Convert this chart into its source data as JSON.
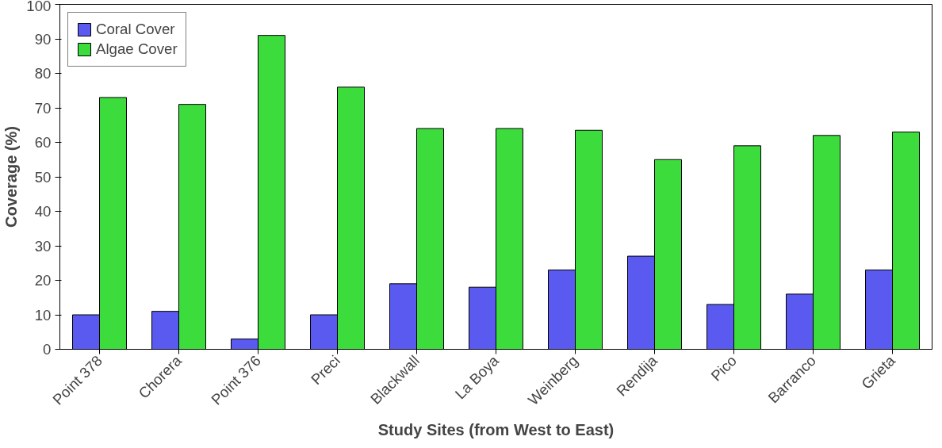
{
  "chart_data": {
    "type": "bar",
    "xlabel": "Study Sites (from West to East)",
    "ylabel": "Coverage (%)",
    "categories": [
      "Point 378",
      "Chorera",
      "Point 376",
      "Preci",
      "Blackwall",
      "La Boya",
      "Weinberg",
      "Rendija",
      "Pico",
      "Barranco",
      "Grieta"
    ],
    "series": [
      {
        "name": "Coral Cover",
        "color": "#5a5af0",
        "values": [
          10,
          11,
          3,
          10,
          19,
          18,
          23,
          27,
          13,
          16,
          23
        ]
      },
      {
        "name": "Algae Cover",
        "color": "#3ddc3d",
        "values": [
          73,
          71,
          91,
          76,
          64,
          64,
          63.5,
          55,
          59,
          62,
          63
        ]
      }
    ],
    "ylim": [
      0,
      100
    ],
    "yticks": [
      0,
      10,
      20,
      30,
      40,
      50,
      60,
      70,
      80,
      90,
      100
    ],
    "grid": false,
    "legend": "top left"
  }
}
